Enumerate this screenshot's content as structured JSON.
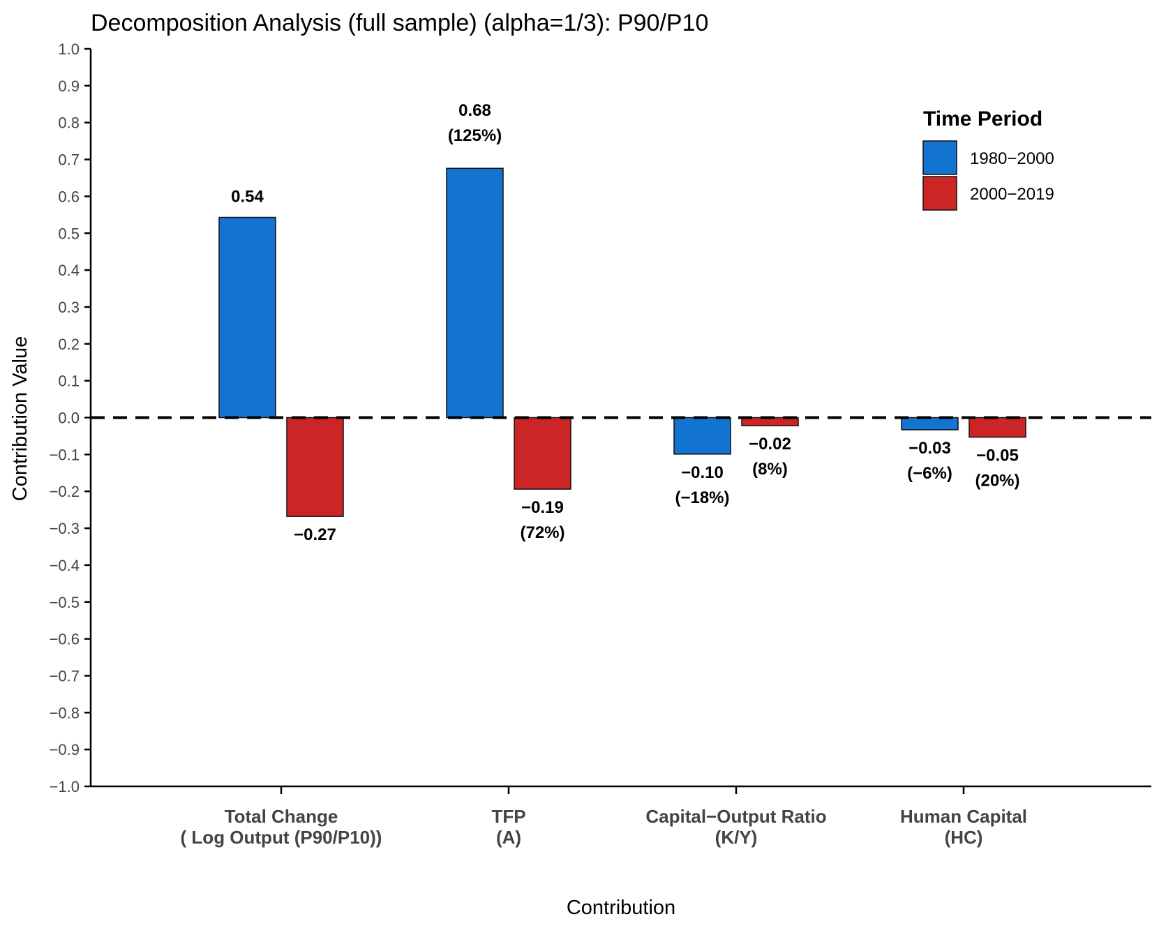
{
  "chart_data": {
    "type": "bar",
    "title": "Decomposition Analysis (full sample) (alpha=1/3): P90/P10",
    "xlabel": "Contribution",
    "ylabel": "Contribution Value",
    "ylim": [
      -1.0,
      1.0
    ],
    "ytick_step": 0.1,
    "yticks": [
      "1.0",
      "0.9",
      "0.8",
      "0.7",
      "0.6",
      "0.5",
      "0.4",
      "0.3",
      "0.2",
      "0.1",
      "0.0",
      "−0.1",
      "−0.2",
      "−0.3",
      "−0.4",
      "−0.5",
      "−0.6",
      "−0.7",
      "−0.8",
      "−0.9",
      "−1.0"
    ],
    "grid": false,
    "zero_line": "dashed",
    "categories": [
      {
        "line1": "Total Change",
        "line2": "( Log Output (P90/P10))"
      },
      {
        "line1": "TFP",
        "line2": "(A)"
      },
      {
        "line1": "Capital−Output Ratio",
        "line2": "(K/Y)"
      },
      {
        "line1": "Human Capital",
        "line2": "(HC)"
      }
    ],
    "legend": {
      "title": "Time Period",
      "position": "top-right"
    },
    "series": [
      {
        "name": "1980−2000",
        "color": "#1373d0",
        "values": [
          0.543,
          0.676,
          -0.099,
          -0.033
        ],
        "labels": [
          {
            "value": "0.54",
            "pct": ""
          },
          {
            "value": "0.68",
            "pct": "(125%)"
          },
          {
            "value": "−0.10",
            "pct": "(−18%)"
          },
          {
            "value": "−0.03",
            "pct": "(−6%)"
          }
        ]
      },
      {
        "name": "2000−2019",
        "color": "#cc2526",
        "values": [
          -0.268,
          -0.194,
          -0.022,
          -0.053
        ],
        "labels": [
          {
            "value": "−0.27",
            "pct": ""
          },
          {
            "value": "−0.19",
            "pct": "(72%)"
          },
          {
            "value": "−0.02",
            "pct": "(8%)"
          },
          {
            "value": "−0.05",
            "pct": "(20%)"
          }
        ]
      }
    ]
  }
}
